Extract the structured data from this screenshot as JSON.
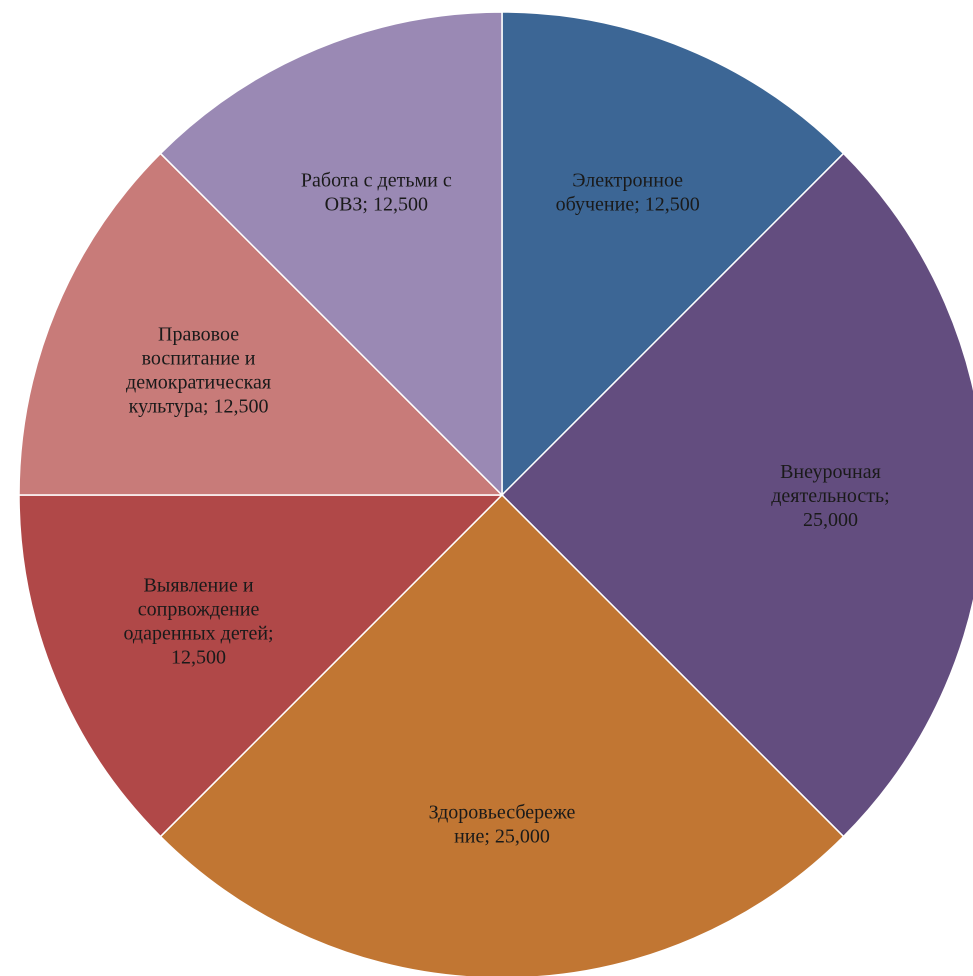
{
  "chart_data": {
    "type": "pie",
    "values": [
      12.5,
      25,
      25,
      12.5,
      12.5,
      12.5
    ],
    "value_labels": [
      "Электронное обучение; 12,500",
      "Внеурочная деятельность; 25,000",
      "Здоровьесбережение; 25,000",
      "Выявление и сопрвождение одаренных детей; 12,500",
      "Правовое воспитание и демократическая культура; 12,500",
      "Работа с детьми с ОВЗ; 12,500"
    ],
    "colors": [
      "#3c6695",
      "#634d7f",
      "#c17633",
      "#b04848",
      "#c87b79",
      "#9a89b4"
    ]
  }
}
